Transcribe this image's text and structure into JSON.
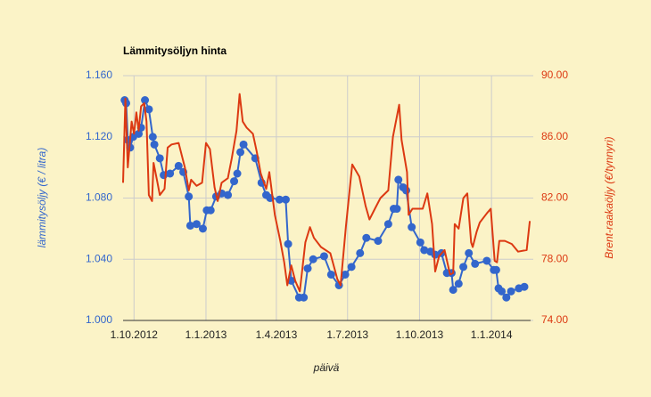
{
  "chart_data": {
    "type": "line",
    "title": "Lämmitysöljyn hinta",
    "xlabel": "päivä",
    "ylabel": "lämmitysöljy (€ / litra)",
    "y2label": "Brent-raakaöljy (€/tynnyri)",
    "xlim": [
      "2012-09-17",
      "2014-02-20"
    ],
    "xticks": [
      {
        "value": "2012-10-01",
        "label": "1.10.2012"
      },
      {
        "value": "2013-01-01",
        "label": "1.1.2013"
      },
      {
        "value": "2013-04-01",
        "label": "1.4.2013"
      },
      {
        "value": "2013-07-01",
        "label": "1.7.2013"
      },
      {
        "value": "2013-10-01",
        "label": "1.10.2013"
      },
      {
        "value": "2014-01-01",
        "label": "1.1.2014"
      }
    ],
    "ylim": [
      1.0,
      1.16
    ],
    "yticks": [
      {
        "value": 1.0,
        "label": "1.000"
      },
      {
        "value": 1.04,
        "label": "1.040"
      },
      {
        "value": 1.08,
        "label": "1.080"
      },
      {
        "value": 1.12,
        "label": "1.120"
      },
      {
        "value": 1.16,
        "label": "1.160"
      }
    ],
    "y2lim": [
      74,
      90
    ],
    "y2ticks": [
      {
        "value": 74,
        "label": "74.00"
      },
      {
        "value": 78,
        "label": "78.00"
      },
      {
        "value": 82,
        "label": "82.00"
      },
      {
        "value": 86,
        "label": "86.00"
      },
      {
        "value": 90,
        "label": "90.00"
      }
    ],
    "grid": true,
    "series": [
      {
        "color": "#3366cc",
        "axis": "y",
        "markers": true,
        "x": [
          "2012-09-19",
          "2012-09-21",
          "2012-09-23",
          "2012-09-26",
          "2012-09-30",
          "2012-10-07",
          "2012-10-10",
          "2012-10-15",
          "2012-10-20",
          "2012-10-25",
          "2012-10-27",
          "2012-11-03",
          "2012-11-08",
          "2012-11-16",
          "2012-11-27",
          "2012-12-03",
          "2012-12-10",
          "2012-12-12",
          "2012-12-20",
          "2012-12-28",
          "2013-01-02",
          "2013-01-07",
          "2013-01-14",
          "2013-01-21",
          "2013-01-29",
          "2013-02-06",
          "2013-02-10",
          "2013-02-14",
          "2013-02-18",
          "2013-03-05",
          "2013-03-13",
          "2013-03-19",
          "2013-03-24",
          "2013-04-05",
          "2013-04-13",
          "2013-04-16",
          "2013-04-20",
          "2013-04-30",
          "2013-05-06",
          "2013-05-11",
          "2013-05-18",
          "2013-06-01",
          "2013-06-10",
          "2013-06-20",
          "2013-06-28",
          "2013-07-06",
          "2013-07-17",
          "2013-07-25",
          "2013-08-09",
          "2013-08-22",
          "2013-08-29",
          "2013-09-02",
          "2013-09-04",
          "2013-09-10",
          "2013-09-14",
          "2013-09-21",
          "2013-10-02",
          "2013-10-07",
          "2013-10-15",
          "2013-10-21",
          "2013-10-29",
          "2013-11-05",
          "2013-11-11",
          "2013-11-13",
          "2013-11-20",
          "2013-11-26",
          "2013-12-03",
          "2013-12-11",
          "2013-12-26",
          "2014-01-04",
          "2014-01-07",
          "2014-01-10",
          "2014-01-14",
          "2014-01-20",
          "2014-01-26",
          "2014-02-05",
          "2014-02-12"
        ],
        "values": [
          1.144,
          1.142,
          1.118,
          1.113,
          1.12,
          1.122,
          1.126,
          1.144,
          1.138,
          1.12,
          1.115,
          1.106,
          1.095,
          1.096,
          1.101,
          1.097,
          1.081,
          1.062,
          1.063,
          1.06,
          1.072,
          1.072,
          1.081,
          1.083,
          1.082,
          1.091,
          1.096,
          1.11,
          1.115,
          1.106,
          1.09,
          1.082,
          1.08,
          1.079,
          1.079,
          1.05,
          1.026,
          1.015,
          1.015,
          1.034,
          1.04,
          1.042,
          1.03,
          1.023,
          1.03,
          1.035,
          1.044,
          1.054,
          1.052,
          1.063,
          1.073,
          1.073,
          1.092,
          1.087,
          1.085,
          1.061,
          1.051,
          1.046,
          1.045,
          1.043,
          1.044,
          1.031,
          1.031,
          1.02,
          1.024,
          1.035,
          1.044,
          1.037,
          1.039,
          1.033,
          1.033,
          1.021,
          1.019,
          1.015,
          1.019,
          1.021,
          1.022
        ]
      },
      {
        "color": "#dc3912",
        "axis": "y2",
        "markers": false,
        "x": [
          "2012-09-17",
          "2012-09-20",
          "2012-09-23",
          "2012-09-28",
          "2012-10-01",
          "2012-10-04",
          "2012-10-07",
          "2012-10-10",
          "2012-10-14",
          "2012-10-17",
          "2012-10-20",
          "2012-10-24",
          "2012-10-26",
          "2012-10-31",
          "2012-11-03",
          "2012-11-09",
          "2012-11-13",
          "2012-11-18",
          "2012-11-27",
          "2012-12-05",
          "2012-12-10",
          "2012-12-13",
          "2012-12-20",
          "2012-12-27",
          "2013-01-01",
          "2013-01-06",
          "2013-01-12",
          "2013-01-16",
          "2013-01-21",
          "2013-01-29",
          "2013-02-03",
          "2013-02-09",
          "2013-02-13",
          "2013-02-17",
          "2013-02-22",
          "2013-03-02",
          "2013-03-07",
          "2013-03-12",
          "2013-03-19",
          "2013-03-23",
          "2013-03-30",
          "2013-04-06",
          "2013-04-11",
          "2013-04-15",
          "2013-04-20",
          "2013-04-25",
          "2013-05-01",
          "2013-05-08",
          "2013-05-14",
          "2013-05-19",
          "2013-05-28",
          "2013-06-09",
          "2013-06-18",
          "2013-06-22",
          "2013-06-29",
          "2013-07-07",
          "2013-07-16",
          "2013-07-24",
          "2013-07-29",
          "2013-08-05",
          "2013-08-12",
          "2013-08-22",
          "2013-08-28",
          "2013-09-05",
          "2013-09-08",
          "2013-09-15",
          "2013-09-17",
          "2013-09-22",
          "2013-10-05",
          "2013-10-11",
          "2013-10-17",
          "2013-10-21",
          "2013-10-26",
          "2013-11-02",
          "2013-11-09",
          "2013-11-13",
          "2013-11-15",
          "2013-11-20",
          "2013-11-26",
          "2013-12-01",
          "2013-12-06",
          "2013-12-08",
          "2013-12-13",
          "2013-12-17",
          "2013-12-26",
          "2013-12-31",
          "2014-01-05",
          "2014-01-08",
          "2014-01-11",
          "2014-01-18",
          "2014-01-27",
          "2014-02-04",
          "2014-02-15",
          "2014-02-19"
        ],
        "values": [
          83.0,
          88.5,
          84.0,
          87.0,
          86.2,
          87.6,
          86.4,
          88.0,
          88.2,
          87.0,
          82.2,
          81.8,
          84.3,
          83.0,
          82.2,
          82.6,
          85.3,
          85.5,
          85.6,
          84.0,
          82.5,
          83.2,
          82.8,
          83.0,
          85.6,
          85.2,
          82.7,
          81.8,
          83.0,
          83.3,
          84.6,
          86.4,
          88.8,
          87.0,
          86.6,
          86.2,
          85.0,
          83.6,
          82.6,
          83.7,
          80.9,
          79.2,
          77.8,
          76.3,
          77.6,
          76.6,
          75.9,
          79.1,
          80.1,
          79.4,
          78.8,
          78.4,
          76.7,
          76.3,
          80.2,
          84.2,
          83.4,
          81.5,
          80.6,
          81.3,
          82.0,
          82.5,
          86.0,
          88.1,
          85.8,
          83.7,
          80.9,
          81.3,
          81.3,
          82.3,
          80.3,
          77.2,
          78.2,
          78.6,
          77.0,
          77.1,
          80.3,
          80.0,
          82.0,
          82.3,
          79.1,
          78.8,
          79.8,
          80.4,
          81.0,
          81.3,
          77.9,
          77.8,
          79.2,
          79.2,
          79.0,
          78.5,
          78.6,
          80.5
        ]
      }
    ]
  }
}
